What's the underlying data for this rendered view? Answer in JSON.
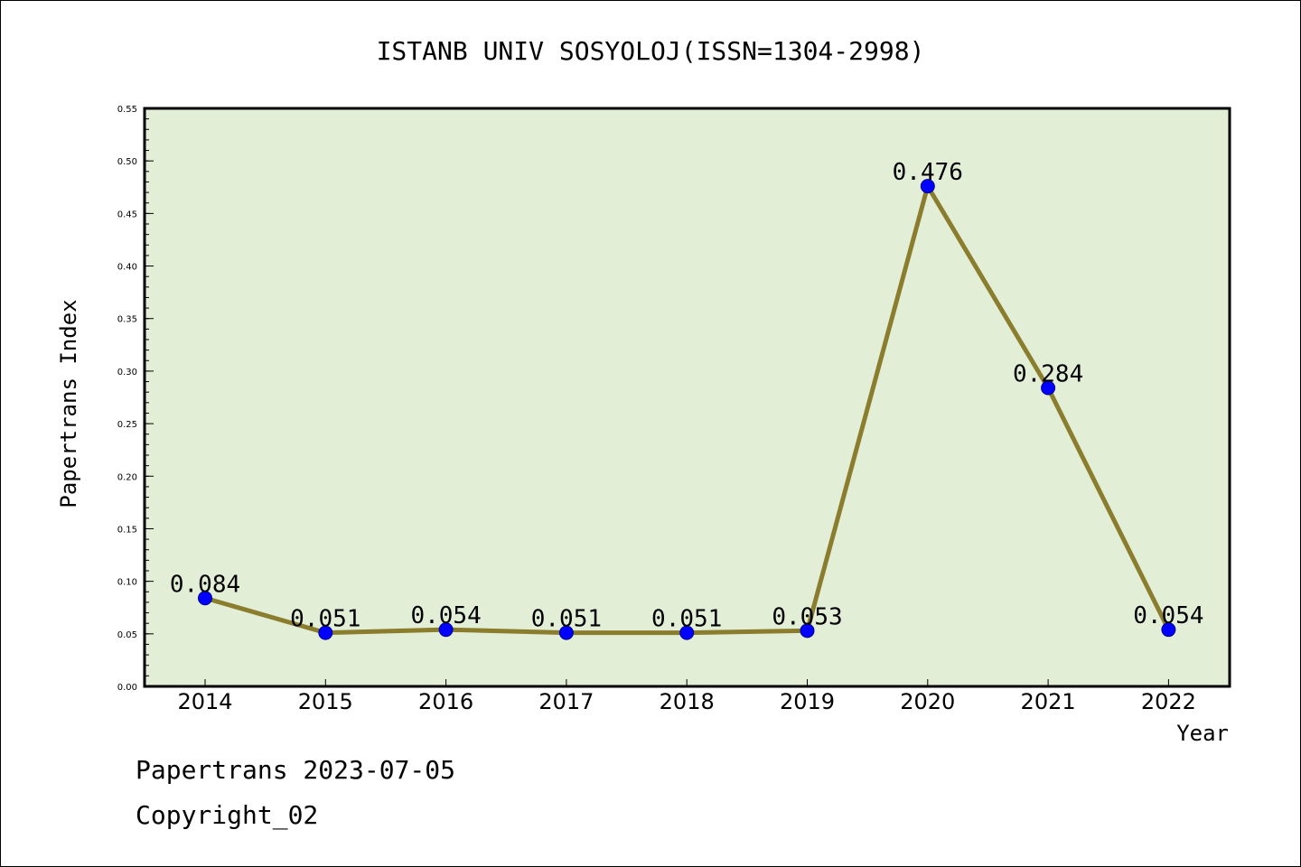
{
  "chart_data": {
    "type": "line",
    "title": "ISTANB UNIV SOSYOLOJ(ISSN=1304-2998)",
    "xlabel": "Year",
    "ylabel": "Papertrans Index",
    "categories": [
      "2014",
      "2015",
      "2016",
      "2017",
      "2018",
      "2019",
      "2020",
      "2021",
      "2022"
    ],
    "series": [
      {
        "values": [
          0.084,
          0.051,
          0.054,
          0.051,
          0.051,
          0.053,
          0.476,
          0.284,
          0.054
        ],
        "labels": [
          "0.084",
          "0.051",
          "0.054",
          "0.051",
          "0.051",
          "0.053",
          "0.476",
          "0.284",
          "0.054"
        ]
      }
    ],
    "ylim": [
      0,
      0.55
    ],
    "yticks": [
      "0.00",
      "0.05",
      "0.10",
      "0.15",
      "0.20",
      "0.25",
      "0.30",
      "0.35",
      "0.40",
      "0.45",
      "0.50",
      "0.55"
    ],
    "grid": false,
    "colors": {
      "plot_bg": "#e2efd6",
      "line": "#8b7d2e",
      "marker": "#0000ff"
    }
  },
  "footer": {
    "line1": "Papertrans 2023-07-05",
    "line2": "Copyright_02"
  }
}
